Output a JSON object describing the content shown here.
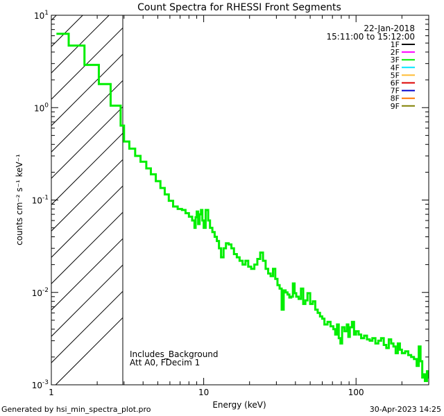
{
  "chart_data": {
    "type": "line",
    "title": "Count Spectra for RHESSI Front Segments",
    "xlabel": "Energy (keV)",
    "ylabel": "counts cm⁻² s⁻¹ keV⁻¹",
    "xscale": "log",
    "yscale": "log",
    "xlim": [
      1,
      300
    ],
    "ylim": [
      0.001,
      10
    ],
    "x_ticks": [
      {
        "value": 1,
        "label": "1"
      },
      {
        "value": 10,
        "label": "10"
      },
      {
        "value": 100,
        "label": "100"
      }
    ],
    "y_ticks": [
      {
        "value": 10,
        "base": "10",
        "exp": "1"
      },
      {
        "value": 1,
        "base": "10",
        "exp": "0"
      },
      {
        "value": 0.1,
        "base": "10",
        "exp": "-1"
      },
      {
        "value": 0.01,
        "base": "10",
        "exp": "-2"
      },
      {
        "value": 0.001,
        "base": "10",
        "exp": "-3"
      }
    ],
    "date_line": "22-Jan-2018",
    "time_line": "15:11:00 to 15:12:00",
    "legend": [
      {
        "name": "1F",
        "color": "#000000"
      },
      {
        "name": "2F",
        "color": "#ff00ff"
      },
      {
        "name": "3F",
        "color": "#00ee00"
      },
      {
        "name": "4F",
        "color": "#00e5ff"
      },
      {
        "name": "5F",
        "color": "#ffbb33"
      },
      {
        "name": "6F",
        "color": "#dd0000"
      },
      {
        "name": "7F",
        "color": "#0000cc"
      },
      {
        "name": "8F",
        "color": "#ff7700"
      },
      {
        "name": "9F",
        "color": "#808000"
      }
    ],
    "legend_placement": "top-right",
    "shaded_region": {
      "x_from": 1,
      "x_to": 3,
      "pattern": "diagonal hatch"
    },
    "annotations": [
      "Includes_Background",
      "Att A0, FDecim 1"
    ],
    "series": [
      {
        "name": "3F",
        "color": "#00ee00",
        "points": [
          [
            1.08,
            6.3
          ],
          [
            1.3,
            4.7
          ],
          [
            1.65,
            2.9
          ],
          [
            2.05,
            1.8
          ],
          [
            2.45,
            1.05
          ],
          [
            2.85,
            0.64
          ],
          [
            3.0,
            0.43
          ],
          [
            3.25,
            0.36
          ],
          [
            3.55,
            0.3
          ],
          [
            3.85,
            0.26
          ],
          [
            4.2,
            0.22
          ],
          [
            4.5,
            0.19
          ],
          [
            4.85,
            0.16
          ],
          [
            5.2,
            0.135
          ],
          [
            5.55,
            0.115
          ],
          [
            5.9,
            0.098
          ],
          [
            6.3,
            0.085
          ],
          [
            6.75,
            0.08
          ],
          [
            7.2,
            0.078
          ],
          [
            7.6,
            0.072
          ],
          [
            8.0,
            0.066
          ],
          [
            8.4,
            0.06
          ],
          [
            8.7,
            0.05
          ],
          [
            8.85,
            0.065
          ],
          [
            9.0,
            0.075
          ],
          [
            9.2,
            0.055
          ],
          [
            9.4,
            0.07
          ],
          [
            9.6,
            0.078
          ],
          [
            9.8,
            0.06
          ],
          [
            10.0,
            0.05
          ],
          [
            10.3,
            0.078
          ],
          [
            10.7,
            0.06
          ],
          [
            11.0,
            0.05
          ],
          [
            11.4,
            0.045
          ],
          [
            11.8,
            0.04
          ],
          [
            12.2,
            0.036
          ],
          [
            12.6,
            0.03
          ],
          [
            13.0,
            0.024
          ],
          [
            13.5,
            0.03
          ],
          [
            14.0,
            0.034
          ],
          [
            14.6,
            0.033
          ],
          [
            15.2,
            0.03
          ],
          [
            15.8,
            0.026
          ],
          [
            16.5,
            0.024
          ],
          [
            17.2,
            0.022
          ],
          [
            18.0,
            0.02
          ],
          [
            18.8,
            0.022
          ],
          [
            19.6,
            0.019
          ],
          [
            20.5,
            0.018
          ],
          [
            21.5,
            0.02
          ],
          [
            22.5,
            0.023
          ],
          [
            23.5,
            0.027
          ],
          [
            24.5,
            0.022
          ],
          [
            25.5,
            0.018
          ],
          [
            26.5,
            0.016
          ],
          [
            27.5,
            0.015
          ],
          [
            28.5,
            0.018
          ],
          [
            29.5,
            0.014
          ],
          [
            30.5,
            0.012
          ],
          [
            31.5,
            0.011
          ],
          [
            32.5,
            0.0065
          ],
          [
            33.5,
            0.0105
          ],
          [
            34.5,
            0.01
          ],
          [
            35.5,
            0.0095
          ],
          [
            36.5,
            0.0088
          ],
          [
            37.5,
            0.009
          ],
          [
            38.5,
            0.0125
          ],
          [
            39.5,
            0.0098
          ],
          [
            40.5,
            0.009
          ],
          [
            42.0,
            0.0085
          ],
          [
            43.5,
            0.011
          ],
          [
            45.0,
            0.0075
          ],
          [
            46.5,
            0.0082
          ],
          [
            48.0,
            0.0098
          ],
          [
            50.0,
            0.0075
          ],
          [
            52.0,
            0.008
          ],
          [
            54.0,
            0.0065
          ],
          [
            56.0,
            0.006
          ],
          [
            58.0,
            0.0055
          ],
          [
            60.0,
            0.0052
          ],
          [
            62.0,
            0.0045
          ],
          [
            65.0,
            0.0048
          ],
          [
            68.0,
            0.0043
          ],
          [
            71.0,
            0.004
          ],
          [
            73.0,
            0.0035
          ],
          [
            75.0,
            0.0045
          ],
          [
            77.0,
            0.0032
          ],
          [
            79.0,
            0.0028
          ],
          [
            81.0,
            0.0042
          ],
          [
            84.0,
            0.0038
          ],
          [
            87.0,
            0.0045
          ],
          [
            89.0,
            0.0033
          ],
          [
            91.0,
            0.0042
          ],
          [
            94.0,
            0.0048
          ],
          [
            97.0,
            0.0035
          ],
          [
            100.0,
            0.0038
          ],
          [
            104.0,
            0.0035
          ],
          [
            108.0,
            0.0032
          ],
          [
            113.0,
            0.0034
          ],
          [
            118.0,
            0.0031
          ],
          [
            123.0,
            0.003
          ],
          [
            128.0,
            0.0032
          ],
          [
            134.0,
            0.0028
          ],
          [
            140.0,
            0.003
          ],
          [
            146.0,
            0.0032
          ],
          [
            152.0,
            0.0027
          ],
          [
            158.0,
            0.0025
          ],
          [
            164.0,
            0.0031
          ],
          [
            170.0,
            0.0028
          ],
          [
            176.0,
            0.0026
          ],
          [
            182.0,
            0.0022
          ],
          [
            188.0,
            0.0028
          ],
          [
            194.0,
            0.0024
          ],
          [
            200.0,
            0.0022
          ],
          [
            210.0,
            0.0023
          ],
          [
            220.0,
            0.0021
          ],
          [
            230.0,
            0.002
          ],
          [
            240.0,
            0.0019
          ],
          [
            250.0,
            0.0016
          ],
          [
            258.0,
            0.0026
          ],
          [
            265.0,
            0.0018
          ],
          [
            272.0,
            0.0012
          ],
          [
            278.0,
            0.0013
          ],
          [
            283.0,
            0.0011
          ],
          [
            286.0,
            0.0013
          ],
          [
            289.0,
            0.0011
          ],
          [
            292.0,
            0.0014
          ],
          [
            294.0,
            0.0012
          ],
          [
            296.0,
            0.0013
          ]
        ]
      }
    ]
  },
  "footer": {
    "generated_by": "Generated by hsi_min_spectra_plot.pro",
    "timestamp": "30-Apr-2023 14:25"
  }
}
